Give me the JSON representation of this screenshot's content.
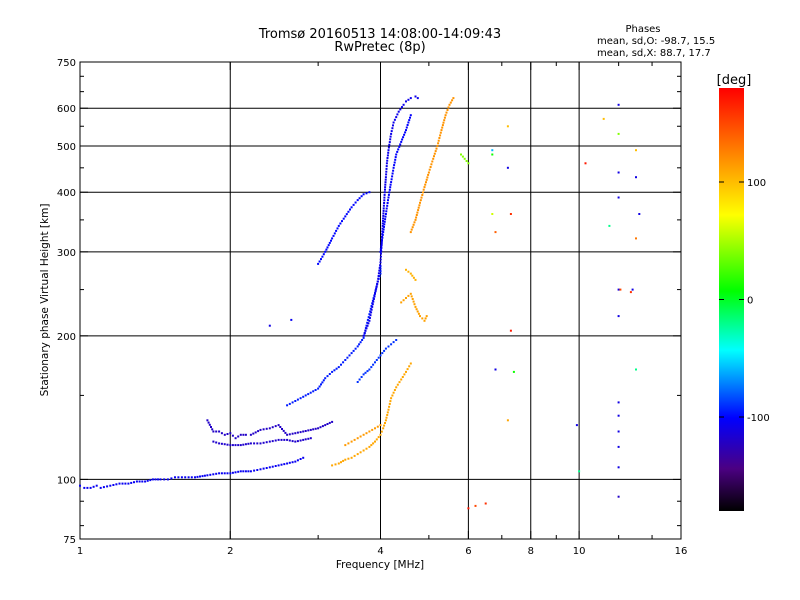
{
  "chart_data": {
    "type": "scatter",
    "title": "Tromsø 20160513 14:08:00-14:09:43",
    "subtitle": "RwPretec (8p)",
    "xlabel": "Frequency [MHz]",
    "ylabel": "Stationary phase Virtual Height [km]",
    "x_scale": "log",
    "y_scale": "log",
    "xlim": [
      1,
      16
    ],
    "ylim": [
      75,
      750
    ],
    "x_ticks": [
      1,
      2,
      4,
      6,
      8,
      10,
      16
    ],
    "x_tick_labels": [
      "1",
      "2",
      "4",
      "6",
      "8",
      "10",
      "16"
    ],
    "x_minor_ticks": [
      3,
      5,
      7,
      9,
      12,
      14
    ],
    "y_ticks": [
      75,
      100,
      200,
      300,
      400,
      500,
      600,
      750
    ],
    "y_tick_labels": [
      "75",
      "100",
      "200",
      "300",
      "400",
      "500",
      "600",
      "750"
    ],
    "y_minor_ticks": [
      80,
      90,
      150,
      250,
      350,
      450,
      550,
      650,
      700
    ],
    "grid_x": [
      2,
      4,
      6,
      8,
      10
    ],
    "grid_y": [
      100,
      200,
      300,
      400,
      500,
      600
    ],
    "phases": {
      "heading": "Phases",
      "o_line": "mean, sd,O: -98.7, 15.5",
      "x_line": "mean, sd,X:  88.7, 17.7"
    },
    "colorbar": {
      "label": "[deg]",
      "range": [
        -180,
        180
      ],
      "ticks": [
        100,
        0,
        -100
      ],
      "tick_labels": [
        "100",
        "0",
        "-100"
      ]
    },
    "traces": [
      {
        "phase": -105,
        "points": [
          [
            1.0,
            97
          ],
          [
            1.02,
            96
          ],
          [
            1.05,
            96
          ],
          [
            1.08,
            97
          ],
          [
            1.1,
            96
          ],
          [
            1.15,
            97
          ],
          [
            1.2,
            98
          ],
          [
            1.25,
            98
          ],
          [
            1.3,
            99
          ],
          [
            1.35,
            99
          ],
          [
            1.4,
            100
          ],
          [
            1.45,
            100
          ],
          [
            1.5,
            100
          ],
          [
            1.55,
            101
          ],
          [
            1.6,
            101
          ],
          [
            1.65,
            101
          ],
          [
            1.7,
            101
          ],
          [
            1.8,
            102
          ],
          [
            1.9,
            103
          ],
          [
            2.0,
            103
          ],
          [
            2.1,
            104
          ],
          [
            2.2,
            104
          ],
          [
            2.3,
            105
          ],
          [
            2.4,
            106
          ],
          [
            2.5,
            107
          ],
          [
            2.6,
            108
          ],
          [
            2.7,
            109
          ],
          [
            2.8,
            111
          ]
        ]
      },
      {
        "phase": -120,
        "points": [
          [
            1.8,
            133
          ],
          [
            1.85,
            126
          ],
          [
            1.9,
            126
          ],
          [
            1.95,
            124
          ],
          [
            2.0,
            125
          ],
          [
            2.05,
            122
          ],
          [
            2.1,
            124
          ],
          [
            2.15,
            124
          ],
          [
            2.2,
            124
          ],
          [
            2.3,
            127
          ],
          [
            2.4,
            128
          ],
          [
            2.5,
            130
          ],
          [
            2.6,
            124
          ],
          [
            2.7,
            125
          ],
          [
            2.8,
            126
          ],
          [
            2.9,
            127
          ],
          [
            3.0,
            128
          ],
          [
            3.1,
            130
          ],
          [
            3.2,
            132
          ]
        ]
      },
      {
        "phase": -118,
        "points": [
          [
            1.85,
            120
          ],
          [
            1.9,
            119
          ],
          [
            2.0,
            118
          ],
          [
            2.1,
            118
          ],
          [
            2.2,
            119
          ],
          [
            2.3,
            119
          ],
          [
            2.4,
            120
          ],
          [
            2.5,
            121
          ],
          [
            2.6,
            121
          ],
          [
            2.7,
            120
          ],
          [
            2.8,
            121
          ],
          [
            2.9,
            122
          ]
        ]
      },
      {
        "phase": -95,
        "points": [
          [
            2.6,
            143
          ],
          [
            2.7,
            146
          ],
          [
            2.8,
            149
          ],
          [
            3.0,
            155
          ],
          [
            3.1,
            163
          ],
          [
            3.2,
            168
          ],
          [
            3.3,
            172
          ],
          [
            3.4,
            178
          ],
          [
            3.5,
            184
          ],
          [
            3.6,
            190
          ],
          [
            3.7,
            198
          ],
          [
            3.75,
            210
          ],
          [
            3.8,
            222
          ],
          [
            3.85,
            234
          ],
          [
            3.9,
            246
          ],
          [
            3.95,
            260
          ],
          [
            4.0,
            270
          ],
          [
            4.0,
            280
          ]
        ]
      },
      {
        "phase": -100,
        "points": [
          [
            3.0,
            283
          ],
          [
            3.1,
            300
          ],
          [
            3.2,
            320
          ],
          [
            3.3,
            340
          ],
          [
            3.4,
            356
          ],
          [
            3.5,
            372
          ],
          [
            3.6,
            385
          ],
          [
            3.7,
            396
          ],
          [
            3.8,
            400
          ]
        ]
      },
      {
        "phase": -108,
        "points": [
          [
            3.7,
            200
          ],
          [
            3.8,
            215
          ],
          [
            3.85,
            230
          ],
          [
            3.9,
            245
          ],
          [
            3.95,
            260
          ],
          [
            4.0,
            285
          ],
          [
            4.02,
            310
          ],
          [
            4.04,
            340
          ],
          [
            4.06,
            370
          ],
          [
            4.08,
            400
          ],
          [
            4.1,
            430
          ],
          [
            4.12,
            460
          ],
          [
            4.15,
            490
          ],
          [
            4.2,
            530
          ],
          [
            4.25,
            560
          ],
          [
            4.35,
            590
          ],
          [
            4.45,
            610
          ],
          [
            4.5,
            620
          ],
          [
            4.6,
            630
          ],
          [
            4.7,
            635
          ],
          [
            4.75,
            630
          ]
        ]
      },
      {
        "phase": -102,
        "points": [
          [
            4.0,
            300
          ],
          [
            4.05,
            330
          ],
          [
            4.1,
            360
          ],
          [
            4.15,
            390
          ],
          [
            4.2,
            420
          ],
          [
            4.25,
            450
          ],
          [
            4.3,
            480
          ],
          [
            4.4,
            510
          ],
          [
            4.5,
            540
          ],
          [
            4.55,
            560
          ],
          [
            4.6,
            580
          ]
        ]
      },
      {
        "phase": -90,
        "points": [
          [
            3.6,
            160
          ],
          [
            3.7,
            166
          ],
          [
            3.8,
            170
          ],
          [
            3.9,
            176
          ],
          [
            4.0,
            182
          ],
          [
            4.1,
            188
          ],
          [
            4.2,
            192
          ],
          [
            4.3,
            196
          ]
        ]
      },
      {
        "phase": 110,
        "points": [
          [
            3.2,
            107
          ],
          [
            3.3,
            108
          ],
          [
            3.4,
            110
          ],
          [
            3.5,
            111
          ],
          [
            3.6,
            113
          ],
          [
            3.7,
            115
          ],
          [
            3.8,
            117
          ],
          [
            3.9,
            120
          ],
          [
            4.0,
            124
          ],
          [
            4.05,
            128
          ],
          [
            4.1,
            133
          ],
          [
            4.15,
            140
          ],
          [
            4.2,
            148
          ],
          [
            4.3,
            156
          ],
          [
            4.4,
            162
          ],
          [
            4.5,
            168
          ],
          [
            4.6,
            175
          ]
        ]
      },
      {
        "phase": 115,
        "points": [
          [
            3.4,
            118
          ],
          [
            3.5,
            120
          ],
          [
            3.6,
            122
          ],
          [
            3.7,
            124
          ],
          [
            3.8,
            126
          ],
          [
            3.9,
            128
          ],
          [
            4.0,
            130
          ]
        ]
      },
      {
        "phase": 112,
        "points": [
          [
            4.4,
            235
          ],
          [
            4.5,
            240
          ],
          [
            4.6,
            245
          ],
          [
            4.7,
            230
          ],
          [
            4.8,
            220
          ],
          [
            4.9,
            215
          ],
          [
            4.95,
            220
          ]
        ]
      },
      {
        "phase": 105,
        "points": [
          [
            4.5,
            275
          ],
          [
            4.6,
            270
          ],
          [
            4.7,
            262
          ]
        ]
      },
      {
        "phase": 118,
        "points": [
          [
            4.6,
            330
          ],
          [
            4.7,
            350
          ],
          [
            4.8,
            380
          ],
          [
            4.9,
            410
          ],
          [
            5.0,
            440
          ],
          [
            5.1,
            470
          ],
          [
            5.2,
            500
          ],
          [
            5.3,
            540
          ],
          [
            5.4,
            580
          ],
          [
            5.5,
            610
          ],
          [
            5.6,
            630
          ]
        ]
      },
      {
        "phase": 40,
        "points": [
          [
            5.8,
            480
          ],
          [
            5.9,
            470
          ],
          [
            6.0,
            460
          ]
        ]
      }
    ],
    "scattered_points": [
      {
        "f": 2.4,
        "h": 210,
        "phase": -110
      },
      {
        "f": 2.65,
        "h": 216,
        "phase": -105
      },
      {
        "f": 6.0,
        "h": 87,
        "phase": 170
      },
      {
        "f": 6.2,
        "h": 88,
        "phase": 150
      },
      {
        "f": 6.5,
        "h": 89,
        "phase": 160
      },
      {
        "f": 6.7,
        "h": 490,
        "phase": -60
      },
      {
        "f": 6.7,
        "h": 480,
        "phase": 10
      },
      {
        "f": 6.7,
        "h": 360,
        "phase": 60
      },
      {
        "f": 6.8,
        "h": 330,
        "phase": 140
      },
      {
        "f": 6.8,
        "h": 170,
        "phase": -110
      },
      {
        "f": 7.2,
        "h": 550,
        "phase": 100
      },
      {
        "f": 7.2,
        "h": 450,
        "phase": -110
      },
      {
        "f": 7.3,
        "h": 360,
        "phase": 160
      },
      {
        "f": 7.3,
        "h": 205,
        "phase": 170
      },
      {
        "f": 7.4,
        "h": 168,
        "phase": 10
      },
      {
        "f": 7.2,
        "h": 133,
        "phase": 110
      },
      {
        "f": 9.9,
        "h": 130,
        "phase": -110
      },
      {
        "f": 10.0,
        "h": 104,
        "phase": -20
      },
      {
        "f": 10.3,
        "h": 460,
        "phase": 170
      },
      {
        "f": 11.2,
        "h": 570,
        "phase": 100
      },
      {
        "f": 11.5,
        "h": 340,
        "phase": -20
      },
      {
        "f": 12.0,
        "h": 610,
        "phase": -110
      },
      {
        "f": 12.0,
        "h": 530,
        "phase": 40
      },
      {
        "f": 12.0,
        "h": 440,
        "phase": -110
      },
      {
        "f": 12.0,
        "h": 390,
        "phase": -110
      },
      {
        "f": 12.0,
        "h": 250,
        "phase": -110
      },
      {
        "f": 12.1,
        "h": 250,
        "phase": 150
      },
      {
        "f": 12.0,
        "h": 220,
        "phase": -110
      },
      {
        "f": 12.0,
        "h": 145,
        "phase": -110
      },
      {
        "f": 12.0,
        "h": 136,
        "phase": -110
      },
      {
        "f": 12.0,
        "h": 126,
        "phase": -110
      },
      {
        "f": 12.0,
        "h": 117,
        "phase": -110
      },
      {
        "f": 12.0,
        "h": 106,
        "phase": -110
      },
      {
        "f": 12.0,
        "h": 92,
        "phase": -120
      },
      {
        "f": 13.0,
        "h": 490,
        "phase": 100
      },
      {
        "f": 13.0,
        "h": 430,
        "phase": -110
      },
      {
        "f": 13.2,
        "h": 360,
        "phase": -110
      },
      {
        "f": 13.0,
        "h": 320,
        "phase": 130
      },
      {
        "f": 12.8,
        "h": 250,
        "phase": -110
      },
      {
        "f": 13.0,
        "h": 170,
        "phase": -20
      },
      {
        "f": 12.7,
        "h": 247,
        "phase": 160
      }
    ]
  }
}
